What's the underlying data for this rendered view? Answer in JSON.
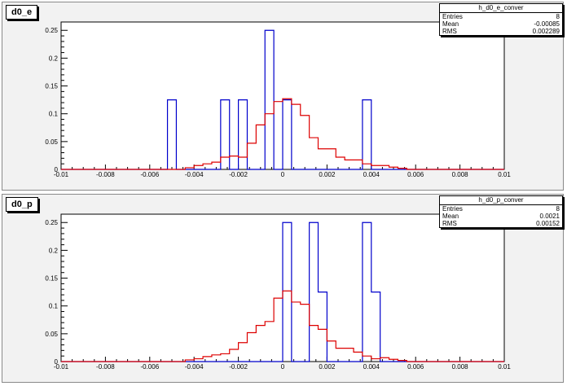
{
  "panels": [
    {
      "title": "d0_e",
      "stats": {
        "name": "h_d0_e_conver",
        "rows": [
          {
            "label": "Entries",
            "value": "8"
          },
          {
            "label": "Mean",
            "value": "-0.00085"
          },
          {
            "label": "RMS",
            "value": "0.002289"
          }
        ]
      }
    },
    {
      "title": "d0_p",
      "stats": {
        "name": "h_d0_p_conver",
        "rows": [
          {
            "label": "Entries",
            "value": "8"
          },
          {
            "label": "Mean",
            "value": "0.0021"
          },
          {
            "label": "RMS",
            "value": "0.00152"
          }
        ]
      }
    }
  ],
  "colors": {
    "series_blue": "#0000cc",
    "series_red": "#dd0000"
  },
  "chart_data": [
    {
      "type": "histogram",
      "title": "d0_e",
      "xlim": [
        -0.01,
        0.01
      ],
      "ylim": [
        0,
        0.265
      ],
      "x_ticks": [
        -0.01,
        -0.008,
        -0.006,
        -0.004,
        -0.002,
        0,
        0.002,
        0.004,
        0.006,
        0.008,
        0.01
      ],
      "x_tick_labels": [
        "-0.01",
        "-0.008",
        "-0.006",
        "-0.004",
        "-0.002",
        "0",
        "0.002",
        "0.004",
        "0.006",
        "0.008",
        "0.01"
      ],
      "y_ticks": [
        0,
        0.05,
        0.1,
        0.15,
        0.2,
        0.25
      ],
      "y_tick_labels": [
        "0",
        "0.05",
        "0.1",
        "0.15",
        "0.2",
        "0.25"
      ],
      "bin_edges": [
        -0.01,
        -0.0096,
        -0.0092,
        -0.0088,
        -0.0084,
        -0.008,
        -0.0076,
        -0.0072,
        -0.0068,
        -0.0064,
        -0.006,
        -0.0056,
        -0.0052,
        -0.0048,
        -0.0044,
        -0.004,
        -0.0036,
        -0.0032,
        -0.0028,
        -0.0024,
        -0.002,
        -0.0016,
        -0.0012,
        -0.0008,
        -0.0004,
        0,
        0.0004,
        0.0008,
        0.0012,
        0.0016,
        0.002,
        0.0024,
        0.0028,
        0.0032,
        0.0036,
        0.004,
        0.0044,
        0.0048,
        0.0052,
        0.0056,
        0.006,
        0.0064,
        0.0068,
        0.0072,
        0.0076,
        0.008,
        0.0084,
        0.0088,
        0.0092,
        0.0096,
        0.01
      ],
      "series": [
        {
          "color": "#0000cc",
          "values": [
            0,
            0,
            0,
            0,
            0,
            0,
            0,
            0,
            0,
            0,
            0,
            0,
            0.125,
            0,
            0,
            0,
            0,
            0,
            0.125,
            0,
            0.125,
            0,
            0,
            0.25,
            0,
            0.125,
            0,
            0,
            0,
            0,
            0,
            0,
            0,
            0,
            0.125,
            0,
            0,
            0,
            0,
            0,
            0,
            0,
            0,
            0,
            0,
            0,
            0,
            0,
            0,
            0
          ]
        },
        {
          "color": "#dd0000",
          "values": [
            0,
            0,
            0,
            0,
            0,
            0,
            0,
            0,
            0,
            0,
            0,
            0,
            0,
            0,
            0.003,
            0.007,
            0.01,
            0.013,
            0.022,
            0.024,
            0.022,
            0.047,
            0.08,
            0.1,
            0.122,
            0.127,
            0.117,
            0.097,
            0.057,
            0.037,
            0.037,
            0.022,
            0.017,
            0.017,
            0.01,
            0.007,
            0.007,
            0.004,
            0.002,
            0,
            0,
            0,
            0,
            0,
            0,
            0,
            0,
            0,
            0,
            0
          ]
        }
      ]
    },
    {
      "type": "histogram",
      "title": "d0_p",
      "xlim": [
        -0.01,
        0.01
      ],
      "ylim": [
        0,
        0.265
      ],
      "x_ticks": [
        -0.01,
        -0.008,
        -0.006,
        -0.004,
        -0.002,
        0,
        0.002,
        0.004,
        0.006,
        0.008,
        0.01
      ],
      "x_tick_labels": [
        "-0.01",
        "-0.008",
        "-0.006",
        "-0.004",
        "-0.002",
        "0",
        "0.002",
        "0.004",
        "0.006",
        "0.008",
        "0.01"
      ],
      "y_ticks": [
        0,
        0.05,
        0.1,
        0.15,
        0.2,
        0.25
      ],
      "y_tick_labels": [
        "0",
        "0.05",
        "0.1",
        "0.15",
        "0.2",
        "0.25"
      ],
      "bin_edges": [
        -0.01,
        -0.0096,
        -0.0092,
        -0.0088,
        -0.0084,
        -0.008,
        -0.0076,
        -0.0072,
        -0.0068,
        -0.0064,
        -0.006,
        -0.0056,
        -0.0052,
        -0.0048,
        -0.0044,
        -0.004,
        -0.0036,
        -0.0032,
        -0.0028,
        -0.0024,
        -0.002,
        -0.0016,
        -0.0012,
        -0.0008,
        -0.0004,
        0,
        0.0004,
        0.0008,
        0.0012,
        0.0016,
        0.002,
        0.0024,
        0.0028,
        0.0032,
        0.0036,
        0.004,
        0.0044,
        0.0048,
        0.0052,
        0.0056,
        0.006,
        0.0064,
        0.0068,
        0.0072,
        0.0076,
        0.008,
        0.0084,
        0.0088,
        0.0092,
        0.0096,
        0.01
      ],
      "series": [
        {
          "color": "#0000cc",
          "values": [
            0,
            0,
            0,
            0,
            0,
            0,
            0,
            0,
            0,
            0,
            0,
            0,
            0,
            0,
            0,
            0,
            0,
            0,
            0,
            0,
            0,
            0,
            0,
            0,
            0,
            0.25,
            0,
            0,
            0.25,
            0.125,
            0,
            0,
            0,
            0,
            0.25,
            0.125,
            0,
            0,
            0,
            0,
            0,
            0,
            0,
            0,
            0,
            0,
            0,
            0,
            0,
            0
          ]
        },
        {
          "color": "#dd0000",
          "values": [
            0,
            0,
            0,
            0,
            0,
            0,
            0,
            0,
            0,
            0,
            0,
            0,
            0,
            0,
            0.003,
            0.005,
            0.009,
            0.012,
            0.014,
            0.022,
            0.034,
            0.052,
            0.065,
            0.072,
            0.114,
            0.127,
            0.107,
            0.103,
            0.065,
            0.058,
            0.037,
            0.024,
            0.024,
            0.017,
            0.01,
            0.005,
            0.007,
            0.004,
            0.002,
            0,
            0,
            0,
            0,
            0,
            0,
            0,
            0,
            0,
            0,
            0
          ]
        }
      ]
    }
  ]
}
